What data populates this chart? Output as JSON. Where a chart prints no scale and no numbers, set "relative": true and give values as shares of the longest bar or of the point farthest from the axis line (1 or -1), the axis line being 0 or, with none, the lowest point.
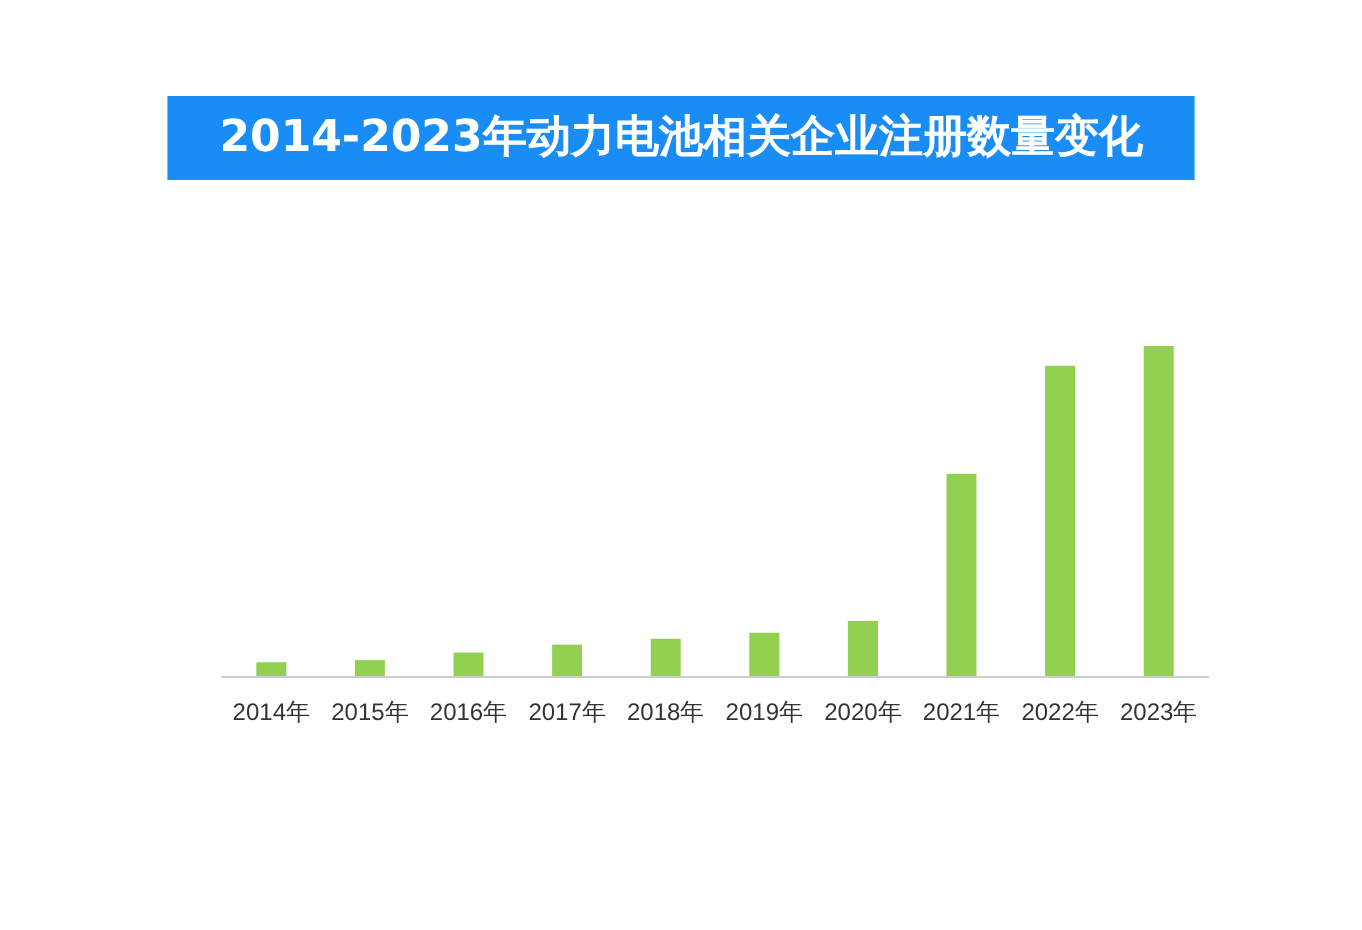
{
  "chart_data": {
    "type": "bar",
    "title": "2014-2023年动力电池相关企业注册数量变化",
    "categories": [
      "2014年",
      "2015年",
      "2016年",
      "2017年",
      "2018年",
      "2019年",
      "2020年",
      "2021年",
      "2022年",
      "2023年"
    ],
    "values": [
      0.042,
      0.048,
      0.071,
      0.095,
      0.113,
      0.131,
      0.167,
      0.613,
      0.94,
      1
    ],
    "color": "#92d050",
    "relative": true
  }
}
